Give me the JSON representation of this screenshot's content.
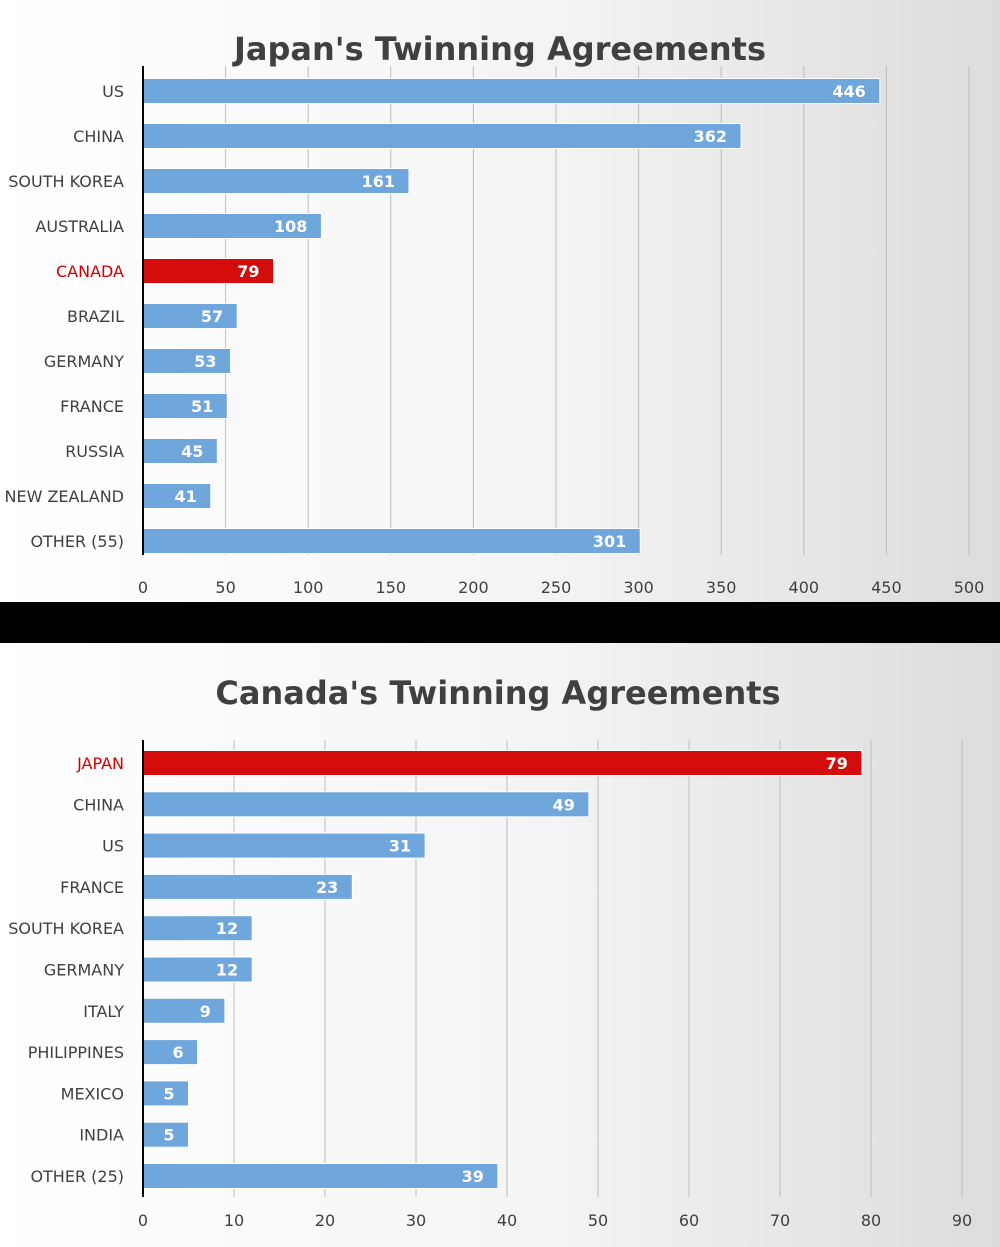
{
  "chart_data": [
    {
      "type": "bar",
      "orientation": "horizontal",
      "title": "Japan's Twinning Agreements",
      "categories": [
        "US",
        "CHINA",
        "SOUTH KOREA",
        "AUSTRALIA",
        "CANADA",
        "BRAZIL",
        "GERMANY",
        "FRANCE",
        "RUSSIA",
        "NEW ZEALAND",
        "OTHER (55)"
      ],
      "values": [
        446,
        362,
        161,
        108,
        79,
        57,
        53,
        51,
        45,
        41,
        301
      ],
      "highlight": "CANADA",
      "xlim": [
        0,
        500
      ],
      "xticks": [
        0,
        50,
        100,
        150,
        200,
        250,
        300,
        350,
        400,
        450,
        500
      ],
      "grid": true,
      "bar_color": "#6fa6dc",
      "highlight_color": "#d40c0c"
    },
    {
      "type": "bar",
      "orientation": "horizontal",
      "title": "Canada's Twinning Agreements",
      "categories": [
        "JAPAN",
        "CHINA",
        "US",
        "FRANCE",
        "SOUTH KOREA",
        "GERMANY",
        "ITALY",
        "PHILIPPINES",
        "MEXICO",
        "INDIA",
        "OTHER (25)"
      ],
      "values": [
        79,
        49,
        31,
        23,
        12,
        12,
        9,
        6,
        5,
        5,
        39
      ],
      "highlight": "JAPAN",
      "xlim": [
        0,
        90
      ],
      "xticks": [
        0,
        10,
        20,
        30,
        40,
        50,
        60,
        70,
        80,
        90
      ],
      "grid": true,
      "bar_color": "#6fa6dc",
      "highlight_color": "#d40c0c"
    }
  ]
}
